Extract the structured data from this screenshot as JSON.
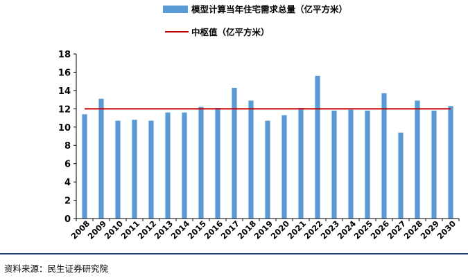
{
  "chart_data": {
    "type": "bar",
    "categories": [
      "2008",
      "2009",
      "2010",
      "2011",
      "2012",
      "2013",
      "2014",
      "2015",
      "2016",
      "2017",
      "2018",
      "2019",
      "2020",
      "2021",
      "2022",
      "2023",
      "2024",
      "2025",
      "2026",
      "2027",
      "2028",
      "2029",
      "2030"
    ],
    "series": [
      {
        "name": "模型计算当年住宅需求总量（亿平方米）",
        "type": "bar",
        "color": "#5b9bd5",
        "values": [
          11.4,
          13.1,
          10.7,
          10.8,
          10.7,
          11.6,
          11.6,
          12.2,
          12.1,
          14.3,
          12.9,
          10.7,
          11.3,
          12.1,
          15.6,
          11.8,
          11.9,
          11.8,
          13.7,
          9.4,
          12.9,
          11.8,
          12.3
        ]
      },
      {
        "name": "中枢值（亿平方米）",
        "type": "line",
        "color": "#c00000",
        "values": [
          12,
          12,
          12,
          12,
          12,
          12,
          12,
          12,
          12,
          12,
          12,
          12,
          12,
          12,
          12,
          12,
          12,
          12,
          12,
          12,
          12,
          12,
          12
        ]
      }
    ],
    "yticks": [
      "0",
      "2",
      "4",
      "6",
      "8",
      "10",
      "12",
      "14",
      "16",
      "18"
    ],
    "ylim": [
      0,
      18
    ],
    "grid": false,
    "legend_position": "top"
  },
  "source": "资料来源：民生证券研究院"
}
